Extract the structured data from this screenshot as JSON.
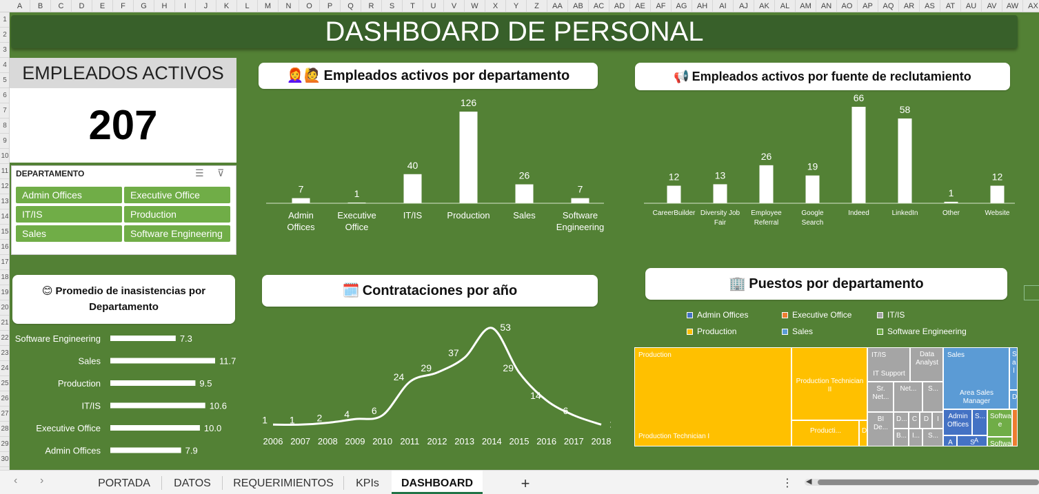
{
  "columns": [
    "A",
    "B",
    "C",
    "D",
    "E",
    "F",
    "G",
    "H",
    "I",
    "J",
    "K",
    "L",
    "M",
    "N",
    "O",
    "P",
    "Q",
    "R",
    "S",
    "T",
    "U",
    "V",
    "W",
    "X",
    "Y",
    "Z",
    "AA",
    "AB",
    "AC",
    "AD",
    "AE",
    "AF",
    "AG",
    "AH",
    "AI",
    "AJ",
    "AK",
    "AL",
    "AM",
    "AN",
    "AO",
    "AP",
    "AQ",
    "AR",
    "AS",
    "AT",
    "AU",
    "AV",
    "AW",
    "AX"
  ],
  "rows": [
    "1",
    "2",
    "3",
    "4",
    "5",
    "6",
    "7",
    "8",
    "9",
    "10",
    "11",
    "12",
    "13",
    "14",
    "15",
    "16",
    "17",
    "18",
    "19",
    "20",
    "21",
    "22",
    "23",
    "24",
    "25",
    "26",
    "27",
    "28",
    "29",
    "30"
  ],
  "dashboard": {
    "title": "DASHBOARD DE PERSONAL",
    "active_label": "EMPLEADOS ACTIVOS",
    "active_value": "207"
  },
  "slicer": {
    "header": "DEPARTAMENTO",
    "icons": [
      "multiselect-icon",
      "clear-filter-icon"
    ],
    "items": [
      "Admin Offices",
      "Executive Office",
      "IT/IS",
      "Production",
      "Sales",
      "Software Engineering"
    ]
  },
  "chart_data": [
    {
      "type": "bar",
      "title_icon": "👩‍🦰🙋",
      "title": "Empleados activos por departamento",
      "categories": [
        "Admin Offices",
        "Executive Office",
        "IT/IS",
        "Production",
        "Sales",
        "Software Engineering"
      ],
      "category_lines": [
        [
          "Admin",
          "Offices"
        ],
        [
          "Executive",
          "Office"
        ],
        [
          "IT/IS"
        ],
        [
          "Production"
        ],
        [
          "Sales"
        ],
        [
          "Software",
          "Engineering"
        ]
      ],
      "values": [
        7,
        1,
        40,
        126,
        26,
        7
      ],
      "grid": false,
      "bar_color": "#ffffff"
    },
    {
      "type": "bar",
      "title_icon": "📢",
      "title": "Empleados activos por fuente de reclutamiento",
      "categories": [
        "CareerBuilder",
        "Diversity Job Fair",
        "Employee Referral",
        "Google Search",
        "Indeed",
        "LinkedIn",
        "Other",
        "Website"
      ],
      "category_lines": [
        [
          "CareerBuilder"
        ],
        [
          "Diversity Job",
          "Fair"
        ],
        [
          "Employee",
          "Referral"
        ],
        [
          "Google",
          "Search"
        ],
        [
          "Indeed"
        ],
        [
          "LinkedIn"
        ],
        [
          "Other"
        ],
        [
          "Website"
        ]
      ],
      "values": [
        12,
        13,
        26,
        19,
        66,
        58,
        1,
        12
      ],
      "grid": false,
      "bar_color": "#ffffff"
    },
    {
      "type": "bar",
      "orientation": "horizontal",
      "title_icon": "😊",
      "title_lines": [
        "Promedio de inasistencias por",
        "Departamento"
      ],
      "categories": [
        "Software Engineering",
        "Sales",
        "Production",
        "IT/IS",
        "Executive Office",
        "Admin Offices"
      ],
      "values": [
        7.3,
        11.7,
        9.5,
        10.6,
        10.0,
        7.9
      ],
      "value_labels": [
        "7.3",
        "11.7",
        "9.5",
        "10.6",
        "10.0",
        "7.9"
      ],
      "xlim": [
        0,
        12
      ]
    },
    {
      "type": "line",
      "title_icon": "🗓️",
      "title": "Contrataciones por año",
      "x": [
        "2006",
        "2007",
        "2008",
        "2009",
        "2010",
        "2011",
        "2012",
        "2013",
        "2014",
        "2015",
        "2016",
        "2017",
        "2018"
      ],
      "values": [
        1,
        1,
        2,
        4,
        6,
        24,
        29,
        37,
        53,
        29,
        14,
        6,
        1
      ],
      "smooth": true,
      "line_color": "#ffffff"
    },
    {
      "type": "treemap",
      "title_icon": "🏢",
      "title": "Puestos por departamento",
      "legend_position": "top",
      "legend": [
        {
          "name": "Admin Offices",
          "color": "#4472c4"
        },
        {
          "name": "Executive Office",
          "color": "#ed7d31"
        },
        {
          "name": "IT/IS",
          "color": "#a5a5a5"
        },
        {
          "name": "Production",
          "color": "#ffc000"
        },
        {
          "name": "Sales",
          "color": "#5b9bd5"
        },
        {
          "name": "Software Engineering",
          "color": "#70ad47"
        }
      ],
      "labels": [
        "Production",
        "Production Technician I",
        "Production Technician II",
        "Producti...",
        "D",
        "IT/IS",
        "IT Support",
        "Data Analyst",
        "Sr. Net...",
        "Net...",
        "S...",
        "BI De...",
        "D...",
        "C",
        "D",
        "I",
        "B...",
        "I...",
        "S...",
        "Sales",
        "Area Sales Manager",
        "S a l",
        "D",
        "Admin Offices",
        "A",
        "S...",
        "A",
        "S",
        "Softwar e",
        "Softwar e..."
      ]
    }
  ],
  "tabs": {
    "items": [
      "PORTADA",
      "DATOS",
      "REQUERIMIENTOS",
      "KPIs",
      "DASHBOARD"
    ],
    "active": "DASHBOARD",
    "add_label": "+",
    "more_label": "⋮",
    "prev_label": "‹",
    "next_label": "›",
    "scroll_left_label": "◀"
  }
}
